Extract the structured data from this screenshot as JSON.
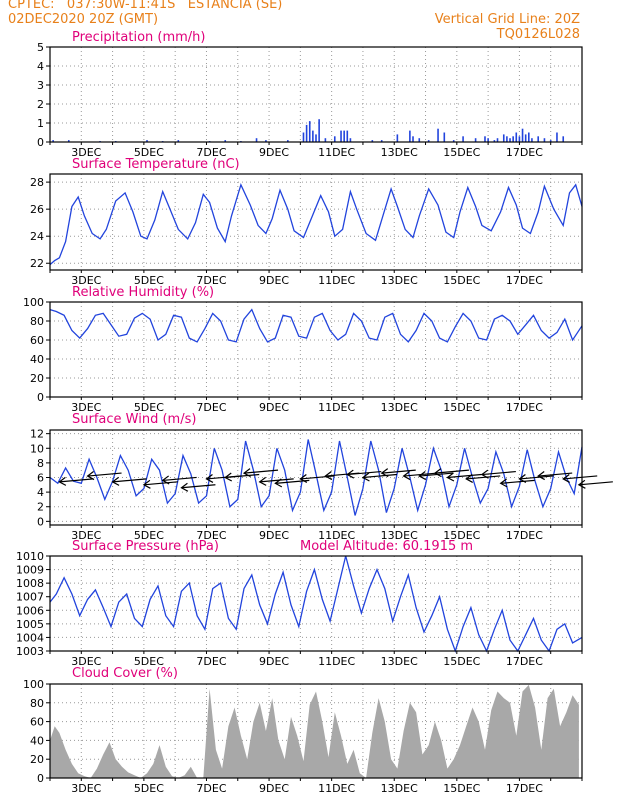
{
  "header": {
    "line1": "CPTEC:   037:30W-11:41S   ESTANCIA (SE)",
    "line2": "02DEC2020 20Z (GMT)",
    "grid_note": "Vertical Grid Line: 20Z",
    "code": "TQ0126L028"
  },
  "colors": {
    "header": "#e8801a",
    "title": "#e0007a",
    "line": "#2244dd",
    "cloud": "#a8a8a8",
    "grid": "#999999"
  },
  "x_labels": [
    "3DEC",
    "5DEC",
    "7DEC",
    "9DEC",
    "11DEC",
    "13DEC",
    "15DEC",
    "17DEC"
  ],
  "chart_data": [
    {
      "type": "bar",
      "title": "Precipitation (mm/h)",
      "ylim": [
        0,
        5
      ],
      "yticks": [
        0,
        1,
        2,
        3,
        4,
        5
      ],
      "x": [
        0.1,
        0.6,
        1.6,
        2.1,
        3.1,
        3.6,
        4.1,
        5.1,
        5.6,
        6.1,
        6.6,
        6.9,
        7.6,
        8.1,
        8.2,
        8.3,
        8.4,
        8.5,
        8.6,
        8.8,
        9.1,
        9.3,
        9.4,
        9.5,
        9.6,
        10.3,
        10.6,
        11.1,
        11.5,
        11.6,
        11.8,
        12.1,
        12.4,
        12.6,
        12.9,
        13.2,
        13.6,
        13.9,
        14.0,
        14.2,
        14.3,
        14.5,
        14.6,
        14.7,
        14.8,
        14.9,
        15.0,
        15.1,
        15.2,
        15.3,
        15.4,
        15.6,
        15.8,
        16.0,
        16.2,
        16.4
      ],
      "values": [
        0.1,
        0.1,
        0.05,
        0.05,
        0.1,
        0.05,
        0.1,
        0.05,
        0.1,
        0.05,
        0.2,
        0.1,
        0.1,
        0.5,
        0.9,
        1.1,
        0.6,
        0.4,
        1.2,
        0.2,
        0.3,
        0.6,
        0.6,
        0.6,
        0.2,
        0.1,
        0.1,
        0.4,
        0.6,
        0.3,
        0.2,
        0.1,
        0.7,
        0.5,
        0.1,
        0.3,
        0.2,
        0.3,
        0.2,
        0.1,
        0.2,
        0.4,
        0.3,
        0.2,
        0.3,
        0.5,
        0.3,
        0.7,
        0.4,
        0.5,
        0.2,
        0.3,
        0.2,
        0.1,
        0.5,
        0.3
      ]
    },
    {
      "type": "line",
      "title": "Surface Temperature (nC)",
      "ylim": [
        21.5,
        28.6
      ],
      "yticks": [
        22,
        24,
        26,
        28
      ],
      "x": [
        0,
        0.15,
        0.3,
        0.5,
        0.7,
        0.9,
        1.1,
        1.35,
        1.6,
        1.8,
        2.1,
        2.4,
        2.65,
        2.9,
        3.1,
        3.35,
        3.6,
        3.8,
        4.1,
        4.4,
        4.65,
        4.9,
        5.1,
        5.35,
        5.6,
        5.8,
        6.1,
        6.4,
        6.65,
        6.9,
        7.1,
        7.35,
        7.6,
        7.8,
        8.1,
        8.4,
        8.65,
        8.9,
        9.1,
        9.35,
        9.6,
        9.8,
        10.1,
        10.4,
        10.65,
        10.9,
        11.1,
        11.35,
        11.6,
        11.8,
        12.1,
        12.4,
        12.65,
        12.9,
        13.1,
        13.35,
        13.6,
        13.8,
        14.1,
        14.4,
        14.65,
        14.9,
        15.1,
        15.35,
        15.6,
        15.8,
        16.1,
        16.4,
        16.6,
        16.8,
        17.0
      ],
      "values": [
        21.9,
        22.2,
        22.4,
        23.6,
        26.2,
        26.9,
        25.5,
        24.2,
        23.8,
        24.5,
        26.6,
        27.2,
        25.8,
        24.0,
        23.8,
        25.2,
        27.3,
        26.2,
        24.5,
        23.8,
        25.0,
        27.1,
        26.5,
        24.6,
        23.6,
        25.5,
        27.8,
        26.3,
        24.8,
        24.2,
        25.3,
        27.4,
        26.0,
        24.4,
        23.9,
        25.6,
        27.0,
        25.8,
        24.0,
        24.5,
        27.3,
        26.0,
        24.2,
        23.7,
        25.6,
        27.5,
        26.2,
        24.5,
        23.9,
        25.5,
        27.5,
        26.3,
        24.3,
        23.9,
        25.8,
        27.6,
        26.2,
        24.8,
        24.4,
        25.8,
        27.6,
        26.3,
        24.6,
        24.2,
        25.8,
        27.7,
        26.0,
        24.8,
        27.2,
        27.8,
        26.2
      ]
    },
    {
      "type": "line",
      "title": "Relative Humidity (%)",
      "ylim": [
        0,
        100
      ],
      "yticks": [
        0,
        20,
        40,
        60,
        80,
        100
      ],
      "x": [
        0,
        0.2,
        0.45,
        0.7,
        0.95,
        1.2,
        1.45,
        1.7,
        1.95,
        2.2,
        2.45,
        2.7,
        2.95,
        3.2,
        3.45,
        3.7,
        3.95,
        4.2,
        4.45,
        4.7,
        4.95,
        5.2,
        5.45,
        5.7,
        5.95,
        6.2,
        6.45,
        6.7,
        6.95,
        7.2,
        7.45,
        7.7,
        7.95,
        8.2,
        8.45,
        8.7,
        8.95,
        9.2,
        9.45,
        9.7,
        9.95,
        10.2,
        10.45,
        10.7,
        10.95,
        11.2,
        11.45,
        11.7,
        11.95,
        12.2,
        12.45,
        12.7,
        12.95,
        13.2,
        13.45,
        13.7,
        13.95,
        14.2,
        14.45,
        14.7,
        14.95,
        15.2,
        15.45,
        15.7,
        15.95,
        16.2,
        16.45,
        16.7,
        17.0
      ],
      "values": [
        92,
        90,
        86,
        70,
        62,
        72,
        86,
        88,
        76,
        64,
        66,
        83,
        88,
        82,
        60,
        66,
        86,
        84,
        62,
        58,
        72,
        88,
        80,
        60,
        58,
        82,
        92,
        72,
        58,
        62,
        86,
        84,
        64,
        62,
        84,
        88,
        70,
        60,
        66,
        88,
        80,
        62,
        60,
        84,
        88,
        66,
        58,
        70,
        88,
        80,
        62,
        58,
        74,
        88,
        80,
        62,
        60,
        82,
        86,
        80,
        66,
        76,
        86,
        70,
        62,
        68,
        82,
        60,
        75
      ]
    },
    {
      "type": "line",
      "title": "Surface Wind (m/s)",
      "ylim": [
        -0.5,
        12.5
      ],
      "yticks": [
        0,
        2,
        4,
        6,
        8,
        10,
        12
      ],
      "x": [
        0,
        0.25,
        0.5,
        0.75,
        1.0,
        1.25,
        1.5,
        1.75,
        2.0,
        2.25,
        2.5,
        2.75,
        3.0,
        3.25,
        3.5,
        3.75,
        4.0,
        4.25,
        4.5,
        4.75,
        5.0,
        5.25,
        5.5,
        5.75,
        6.0,
        6.25,
        6.5,
        6.75,
        7.0,
        7.25,
        7.5,
        7.75,
        8.0,
        8.25,
        8.5,
        8.75,
        9.0,
        9.25,
        9.5,
        9.75,
        10.0,
        10.25,
        10.5,
        10.75,
        11.0,
        11.25,
        11.5,
        11.75,
        12.0,
        12.25,
        12.5,
        12.75,
        13.0,
        13.25,
        13.5,
        13.75,
        14.0,
        14.25,
        14.5,
        14.75,
        15.0,
        15.25,
        15.5,
        15.75,
        16.0,
        16.25,
        16.5,
        16.75,
        17.0
      ],
      "values": [
        6,
        5.2,
        7.3,
        5.5,
        5.2,
        8.5,
        6,
        3,
        5.5,
        9,
        7,
        3.5,
        4.5,
        8.5,
        7,
        2.5,
        3.8,
        9,
        6.5,
        2.5,
        3.5,
        10,
        7,
        2,
        3,
        11,
        7,
        2,
        3.5,
        10,
        7,
        1.5,
        4,
        11.2,
        6.5,
        1.5,
        4,
        11,
        6,
        0.8,
        4.5,
        11,
        7,
        1.2,
        4.5,
        10,
        6,
        1.5,
        5,
        10,
        7,
        2,
        5,
        10,
        6,
        2.5,
        4.5,
        9.5,
        6.5,
        2,
        4.8,
        9.8,
        5.5,
        2,
        4.5,
        9.5,
        6,
        3.8,
        10.2
      ],
      "arrows": {
        "x": [
          0.3,
          1.2,
          2.0,
          3.0,
          3.6,
          4.2,
          5.0,
          5.6,
          6.2,
          6.7,
          7.2,
          8.0,
          8.8,
          9.5,
          10.0,
          10.6,
          11.3,
          11.8,
          12.3,
          12.7,
          13.3,
          13.8,
          14.4,
          15.0,
          15.6,
          16.4,
          16.9
        ],
        "y": [
          5.4,
          6.2,
          5.4,
          5.0,
          5.6,
          4.6,
          5.8,
          6.0,
          6.6,
          5.4,
          5.2,
          5.8,
          6.2,
          6.4,
          6.0,
          6.6,
          6.2,
          6.2,
          6.6,
          6.0,
          5.8,
          6.4,
          5.2,
          5.8,
          6.2,
          5.8,
          5.0
        ]
      }
    },
    {
      "type": "line",
      "title": "Surface Pressure (hPa)",
      "annotation": "Model Altitude: 60.1915 m",
      "ylim": [
        1003,
        1010
      ],
      "yticks": [
        1003,
        1004,
        1005,
        1006,
        1007,
        1008,
        1009,
        1010
      ],
      "x": [
        0,
        0.2,
        0.45,
        0.7,
        0.95,
        1.2,
        1.45,
        1.7,
        1.95,
        2.2,
        2.45,
        2.7,
        2.95,
        3.2,
        3.45,
        3.7,
        3.95,
        4.2,
        4.45,
        4.7,
        4.95,
        5.2,
        5.45,
        5.7,
        5.95,
        6.2,
        6.45,
        6.7,
        6.95,
        7.2,
        7.45,
        7.7,
        7.95,
        8.2,
        8.45,
        8.7,
        8.95,
        9.2,
        9.45,
        9.7,
        9.95,
        10.2,
        10.45,
        10.7,
        10.95,
        11.2,
        11.45,
        11.7,
        11.95,
        12.2,
        12.45,
        12.7,
        12.95,
        13.2,
        13.45,
        13.7,
        13.95,
        14.2,
        14.45,
        14.7,
        14.95,
        15.2,
        15.45,
        15.7,
        15.95,
        16.2,
        16.45,
        16.7,
        17.0
      ],
      "values": [
        1006.6,
        1007.2,
        1008.4,
        1007.2,
        1005.6,
        1006.8,
        1007.5,
        1006.2,
        1004.8,
        1006.6,
        1007.2,
        1005.4,
        1004.8,
        1006.8,
        1007.8,
        1005.6,
        1004.8,
        1007.4,
        1008.0,
        1005.6,
        1004.6,
        1007.6,
        1008.0,
        1005.4,
        1004.6,
        1007.6,
        1008.6,
        1006.4,
        1005.0,
        1007.2,
        1008.8,
        1006.4,
        1004.8,
        1007.4,
        1009.0,
        1006.8,
        1005.2,
        1007.6,
        1010.2,
        1007.8,
        1005.8,
        1007.6,
        1009.0,
        1007.6,
        1005.2,
        1007.0,
        1008.6,
        1006.2,
        1004.4,
        1005.6,
        1007.0,
        1004.6,
        1002.8,
        1004.8,
        1006.2,
        1004.2,
        1002.8,
        1004.6,
        1006.0,
        1003.8,
        1002.8,
        1004.2,
        1005.4,
        1003.8,
        1003.0,
        1004.6,
        1005.0,
        1003.6,
        1004.0
      ]
    },
    {
      "type": "area",
      "title": "Cloud Cover (%)",
      "ylim": [
        0,
        100
      ],
      "yticks": [
        0,
        20,
        40,
        60,
        80,
        100
      ],
      "x": [
        0,
        0.15,
        0.3,
        0.5,
        0.7,
        0.9,
        1.1,
        1.3,
        1.5,
        1.7,
        1.9,
        2.1,
        2.3,
        2.5,
        2.7,
        2.9,
        3.1,
        3.3,
        3.5,
        3.7,
        3.9,
        4.1,
        4.3,
        4.5,
        4.7,
        4.9,
        5.1,
        5.3,
        5.5,
        5.7,
        5.9,
        6.1,
        6.3,
        6.5,
        6.7,
        6.9,
        7.1,
        7.3,
        7.5,
        7.7,
        7.9,
        8.1,
        8.3,
        8.5,
        8.7,
        8.9,
        9.1,
        9.3,
        9.5,
        9.7,
        9.9,
        10.1,
        10.3,
        10.5,
        10.7,
        10.9,
        11.1,
        11.3,
        11.5,
        11.7,
        11.9,
        12.1,
        12.3,
        12.5,
        12.7,
        12.9,
        13.1,
        13.3,
        13.5,
        13.7,
        13.9,
        14.1,
        14.3,
        14.5,
        14.7,
        14.9,
        15.1,
        15.3,
        15.5,
        15.7,
        15.9,
        16.1,
        16.3,
        16.5,
        16.7,
        16.9
      ],
      "values": [
        40,
        55,
        48,
        30,
        15,
        5,
        2,
        0,
        10,
        25,
        38,
        20,
        12,
        6,
        3,
        0,
        5,
        15,
        35,
        12,
        2,
        0,
        3,
        12,
        0,
        0,
        95,
        30,
        10,
        55,
        75,
        45,
        20,
        60,
        80,
        50,
        85,
        40,
        20,
        65,
        45,
        18,
        78,
        92,
        60,
        22,
        70,
        45,
        15,
        30,
        5,
        0,
        48,
        85,
        60,
        20,
        10,
        50,
        80,
        70,
        25,
        35,
        60,
        40,
        10,
        20,
        35,
        55,
        75,
        60,
        30,
        72,
        92,
        85,
        80,
        45,
        92,
        99,
        75,
        30,
        85,
        95,
        55,
        70,
        88,
        78
      ]
    }
  ]
}
